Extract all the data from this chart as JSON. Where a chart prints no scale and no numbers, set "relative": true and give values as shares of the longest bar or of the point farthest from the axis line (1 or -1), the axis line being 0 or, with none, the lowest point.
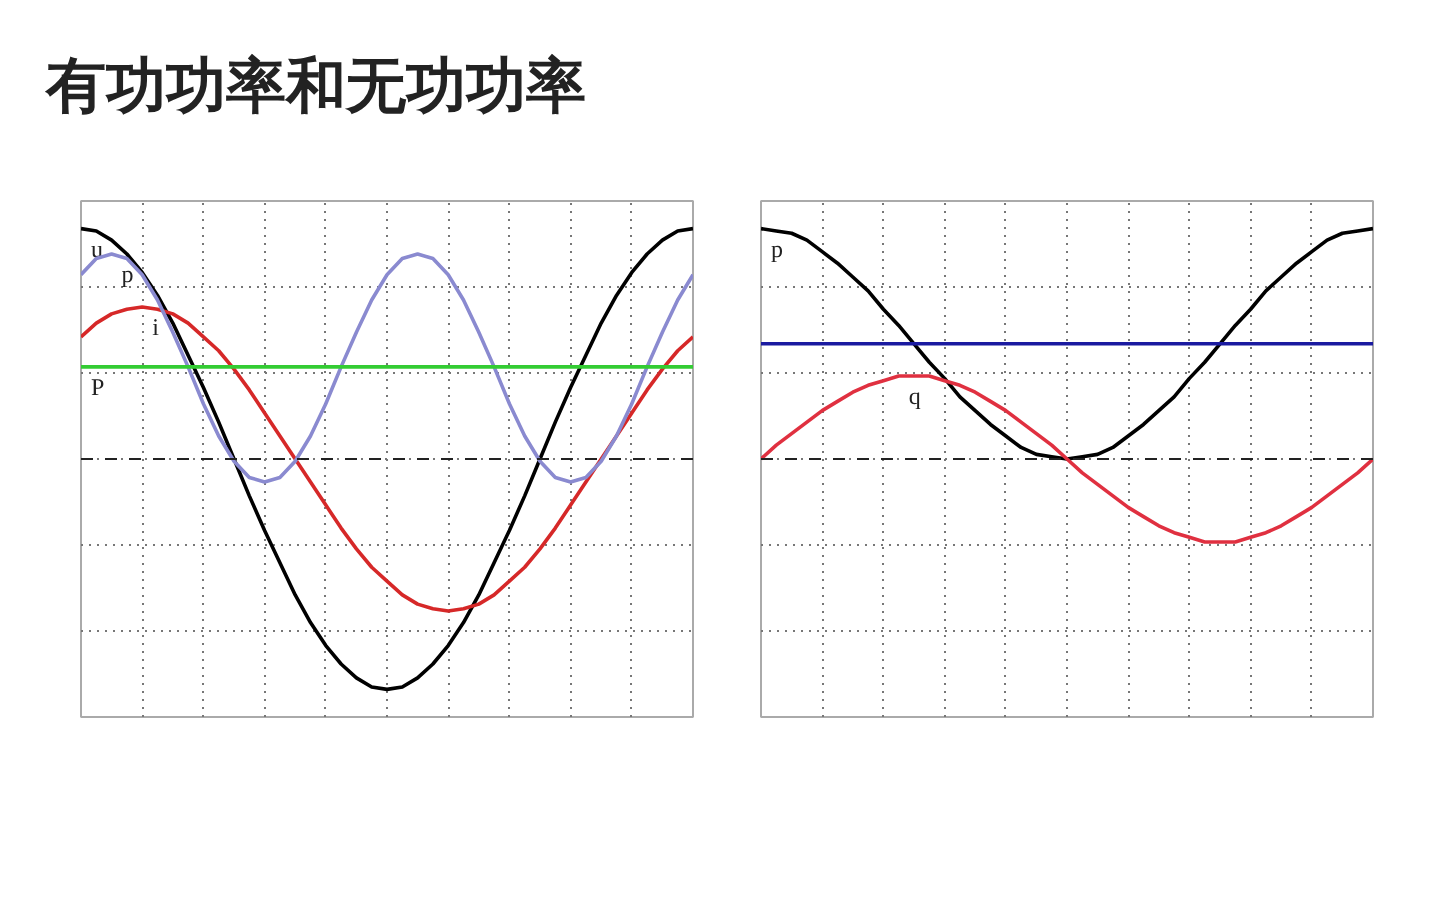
{
  "chart_data": [
    {
      "type": "line",
      "title": "有功功率和无功功率",
      "relative": true,
      "grid": true,
      "line_style": "solid",
      "categories": [
        null,
        null,
        null,
        null,
        null,
        null,
        null,
        null,
        null,
        null,
        null,
        null,
        null,
        null,
        null,
        null,
        null,
        null,
        null,
        null,
        null,
        null,
        null,
        null,
        null,
        null,
        null,
        null,
        null,
        null,
        null,
        null,
        null,
        null,
        null,
        null,
        null,
        null,
        null,
        null,
        null
      ],
      "ref_lines": [
        {
          "axis": "y",
          "value": 0,
          "color": "#222222",
          "line_style": "dashed"
        }
      ],
      "series": [
        {
          "name": "u",
          "color": "#000000",
          "values": [
            1,
            0.99,
            0.95,
            0.89,
            0.81,
            0.71,
            0.59,
            0.45,
            0.31,
            0.16,
            0,
            -0.16,
            -0.31,
            -0.45,
            -0.59,
            -0.71,
            -0.81,
            -0.89,
            -0.95,
            -0.99,
            -1,
            -0.99,
            -0.95,
            -0.89,
            -0.81,
            -0.71,
            -0.59,
            -0.45,
            -0.31,
            -0.16,
            0,
            0.16,
            0.31,
            0.45,
            0.59,
            0.71,
            0.81,
            0.89,
            0.95,
            0.99,
            1
          ]
        },
        {
          "name": "i",
          "color": "#d62828",
          "values": [
            0.53,
            0.59,
            0.63,
            0.65,
            0.66,
            0.65,
            0.63,
            0.59,
            0.53,
            0.47,
            0.39,
            0.3,
            0.2,
            0.1,
            0,
            -0.1,
            -0.2,
            -0.3,
            -0.39,
            -0.47,
            -0.53,
            -0.59,
            -0.63,
            -0.65,
            -0.66,
            -0.65,
            -0.63,
            -0.59,
            -0.53,
            -0.47,
            -0.39,
            -0.3,
            -0.2,
            -0.1,
            0,
            0.1,
            0.2,
            0.3,
            0.39,
            0.47,
            0.53
          ]
        },
        {
          "name": "p",
          "color": "#8a8ad0",
          "values": [
            0.8,
            0.87,
            0.89,
            0.87,
            0.8,
            0.69,
            0.55,
            0.4,
            0.24,
            0.1,
            -0.01,
            -0.08,
            -0.1,
            -0.08,
            -0.01,
            0.1,
            0.24,
            0.4,
            0.55,
            0.69,
            0.8,
            0.87,
            0.89,
            0.87,
            0.8,
            0.69,
            0.55,
            0.4,
            0.24,
            0.1,
            -0.01,
            -0.08,
            -0.1,
            -0.08,
            -0.01,
            0.1,
            0.24,
            0.4,
            0.55,
            0.69,
            0.8
          ]
        },
        {
          "name": "P",
          "color": "#33cc33",
          "values": [
            0.4,
            0.4,
            0.4,
            0.4,
            0.4,
            0.4,
            0.4,
            0.4,
            0.4,
            0.4,
            0.4,
            0.4,
            0.4,
            0.4,
            0.4,
            0.4,
            0.4,
            0.4,
            0.4,
            0.4,
            0.4,
            0.4,
            0.4,
            0.4,
            0.4,
            0.4,
            0.4,
            0.4,
            0.4,
            0.4,
            0.4,
            0.4,
            0.4,
            0.4,
            0.4,
            0.4,
            0.4,
            0.4,
            0.4,
            0.4,
            0.4
          ]
        }
      ]
    },
    {
      "type": "line",
      "relative": true,
      "grid": true,
      "line_style": "solid",
      "categories": [
        null,
        null,
        null,
        null,
        null,
        null,
        null,
        null,
        null,
        null,
        null,
        null,
        null,
        null,
        null,
        null,
        null,
        null,
        null,
        null,
        null,
        null,
        null,
        null,
        null,
        null,
        null,
        null,
        null,
        null,
        null,
        null,
        null,
        null,
        null,
        null,
        null,
        null,
        null,
        null,
        null
      ],
      "ref_lines": [
        {
          "axis": "y",
          "value": 0,
          "color": "#222222",
          "line_style": "dashed"
        }
      ],
      "series": [
        {
          "name": "p",
          "color": "#000000",
          "values": [
            1,
            0.99,
            0.98,
            0.95,
            0.9,
            0.85,
            0.79,
            0.73,
            0.65,
            0.58,
            0.5,
            0.42,
            0.35,
            0.27,
            0.21,
            0.15,
            0.1,
            0.05,
            0.02,
            0.01,
            0,
            0.01,
            0.02,
            0.05,
            0.1,
            0.15,
            0.21,
            0.27,
            0.35,
            0.42,
            0.5,
            0.58,
            0.65,
            0.73,
            0.79,
            0.85,
            0.9,
            0.95,
            0.98,
            0.99,
            1
          ]
        },
        {
          "color": "#1a1aa0",
          "values": [
            0.5,
            0.5,
            0.5,
            0.5,
            0.5,
            0.5,
            0.5,
            0.5,
            0.5,
            0.5,
            0.5,
            0.5,
            0.5,
            0.5,
            0.5,
            0.5,
            0.5,
            0.5,
            0.5,
            0.5,
            0.5,
            0.5,
            0.5,
            0.5,
            0.5,
            0.5,
            0.5,
            0.5,
            0.5,
            0.5,
            0.5,
            0.5,
            0.5,
            0.5,
            0.5,
            0.5,
            0.5,
            0.5,
            0.5,
            0.5,
            0.5
          ]
        },
        {
          "name": "q",
          "color": "#e03040",
          "values": [
            0,
            0.06,
            0.11,
            0.16,
            0.21,
            0.25,
            0.29,
            0.32,
            0.34,
            0.36,
            0.36,
            0.36,
            0.34,
            0.32,
            0.29,
            0.25,
            0.21,
            0.16,
            0.11,
            0.06,
            0,
            -0.06,
            -0.11,
            -0.16,
            -0.21,
            -0.25,
            -0.29,
            -0.32,
            -0.34,
            -0.36,
            -0.36,
            -0.36,
            -0.34,
            -0.32,
            -0.29,
            -0.25,
            -0.21,
            -0.16,
            -0.11,
            -0.06,
            0
          ]
        }
      ]
    }
  ]
}
